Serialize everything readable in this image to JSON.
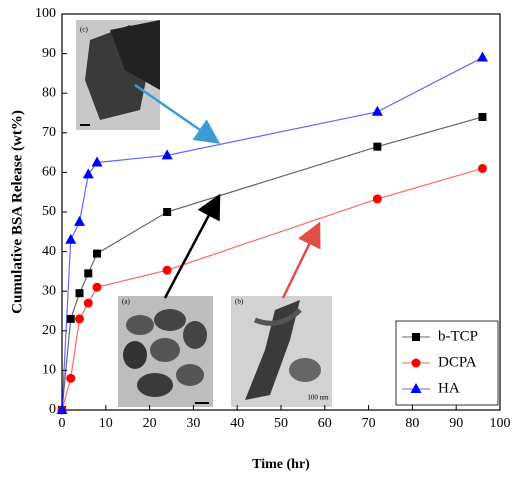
{
  "chart_data": {
    "type": "line",
    "x_label": "Time (hr)",
    "y_label": "Cumulative BSA Release (wt%)",
    "x": [
      0,
      2,
      4,
      6,
      8,
      24,
      72,
      96
    ],
    "series": [
      {
        "name": "b-TCP",
        "color": "#000000",
        "marker": "square",
        "values": [
          0,
          23,
          29.5,
          34.5,
          39.5,
          50,
          66.5,
          74
        ]
      },
      {
        "name": "DCPA",
        "color": "#ff0000",
        "marker": "circle",
        "values": [
          0,
          8,
          23,
          27,
          31,
          35.3,
          53.3,
          61
        ]
      },
      {
        "name": "HA",
        "color": "#0000ff",
        "marker": "triangle",
        "values": [
          0,
          43,
          47.5,
          59.5,
          62.5,
          64.3,
          75.3,
          89
        ]
      }
    ],
    "xlim": [
      0,
      100
    ],
    "ylim": [
      0,
      100
    ],
    "xticks": [
      0,
      10,
      20,
      30,
      40,
      50,
      60,
      70,
      80,
      90,
      100
    ],
    "yticks": [
      0,
      10,
      20,
      30,
      40,
      50,
      60,
      70,
      80,
      90,
      100
    ],
    "legend": "lower right",
    "insets": [
      "(c)",
      "(a)",
      "(b)",
      "100 nm"
    ]
  }
}
